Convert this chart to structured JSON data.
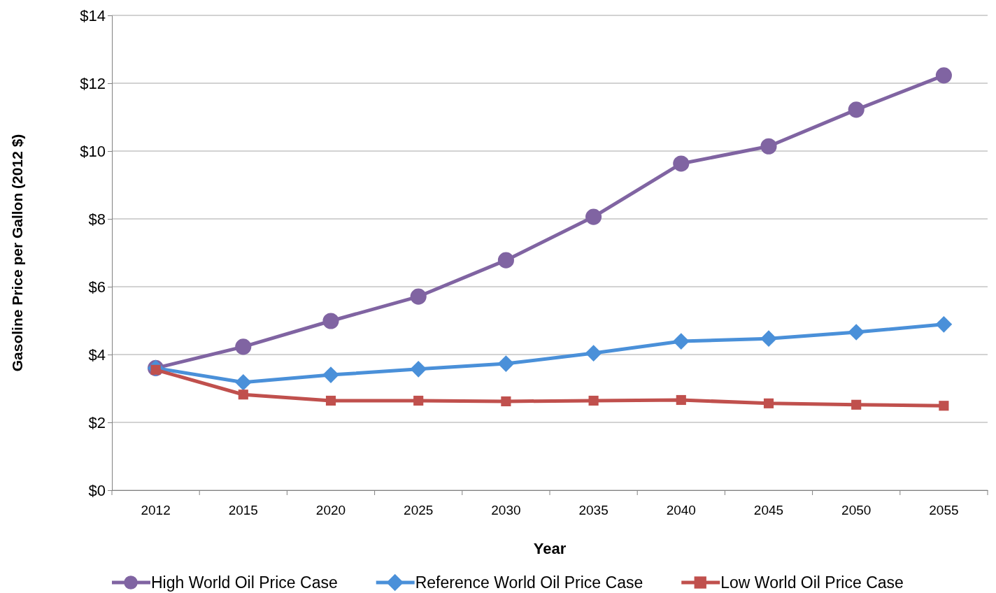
{
  "chart_data": {
    "type": "line",
    "xlabel": "Year",
    "ylabel": "Gasoline Price per Gallon (2012 $)",
    "categories": [
      "2012",
      "2015",
      "2020",
      "2025",
      "2030",
      "2035",
      "2040",
      "2045",
      "2050",
      "2055"
    ],
    "series": [
      {
        "name": "High World Oil Price Case",
        "color": "#8064a2",
        "marker": "circle",
        "values": [
          3.6,
          4.23,
          4.99,
          5.71,
          6.78,
          8.06,
          9.63,
          10.14,
          11.22,
          12.23
        ]
      },
      {
        "name": "Reference World Oil Price Case",
        "color": "#4a90d9",
        "marker": "diamond",
        "values": [
          3.6,
          3.18,
          3.4,
          3.57,
          3.73,
          4.04,
          4.39,
          4.47,
          4.66,
          4.89
        ]
      },
      {
        "name": "Low World Oil Price Case",
        "color": "#c0504d",
        "marker": "square",
        "values": [
          3.55,
          2.82,
          2.64,
          2.64,
          2.62,
          2.64,
          2.66,
          2.56,
          2.52,
          2.49
        ]
      }
    ],
    "ylim": [
      0,
      14
    ],
    "yticks": [
      {
        "value": 0,
        "label": "$0"
      },
      {
        "value": 2,
        "label": "$2"
      },
      {
        "value": 4,
        "label": "$4"
      },
      {
        "value": 6,
        "label": "$6"
      },
      {
        "value": 8,
        "label": "$8"
      },
      {
        "value": 10,
        "label": "$10"
      },
      {
        "value": 12,
        "label": "$12"
      },
      {
        "value": 14,
        "label": "$14"
      }
    ],
    "grid": "y",
    "legend": "bottom",
    "line_style": "solid"
  }
}
